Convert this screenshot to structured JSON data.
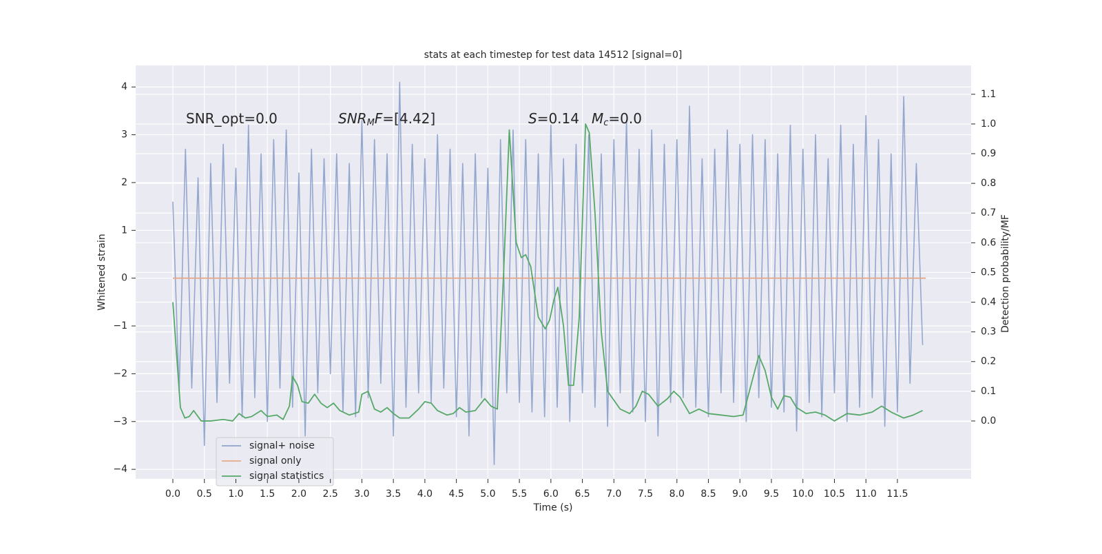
{
  "chart_data": {
    "type": "line",
    "title": "stats at each timestep for test data 14512 [signal=0]",
    "xlabel": "Time (s)",
    "ylabel": "Whitened strain",
    "y2label": "Detection probability/MF",
    "xlim": [
      -0.59,
      12.67
    ],
    "ylim": [
      -4.2,
      4.45
    ],
    "y2lim": [
      -0.195,
      1.197
    ],
    "xticks": [
      {
        "value": 0,
        "label": "0.0"
      },
      0.5,
      {
        "value": 1,
        "label": "1.0"
      },
      1.5,
      {
        "value": 2,
        "label": "2.0"
      },
      2.5,
      {
        "value": 3,
        "label": "3.0"
      },
      3.5,
      {
        "value": 4,
        "label": "4.0"
      },
      4.5,
      {
        "value": 5,
        "label": "5.0"
      },
      5.5,
      {
        "value": 6,
        "label": "6.0"
      },
      6.5,
      {
        "value": 7,
        "label": "7.0"
      },
      7.5,
      {
        "value": 8,
        "label": "8.0"
      },
      8.5,
      {
        "value": 9,
        "label": "9.0"
      },
      9.5,
      {
        "value": 10,
        "label": "10.0"
      },
      10.5,
      {
        "value": 11,
        "label": "11.0"
      },
      11.5
    ],
    "yticks": [
      {
        "value": -4,
        "label": "−4"
      },
      {
        "value": -3,
        "label": "−3"
      },
      {
        "value": -2,
        "label": "−2"
      },
      {
        "value": -1,
        "label": "−1"
      },
      0,
      1,
      2,
      3,
      4
    ],
    "y2ticks": [
      {
        "value": 0,
        "label": "0.0"
      },
      {
        "value": 0.1,
        "label": "0.1"
      },
      {
        "value": 0.2,
        "label": "0.2"
      },
      {
        "value": 0.3,
        "label": "0.3"
      },
      {
        "value": 0.4,
        "label": "0.4"
      },
      {
        "value": 0.5,
        "label": "0.5"
      },
      {
        "value": 0.6,
        "label": "0.6"
      },
      {
        "value": 0.7,
        "label": "0.7"
      },
      {
        "value": 0.8,
        "label": "0.8"
      },
      {
        "value": 0.9,
        "label": "0.9"
      },
      {
        "value": 1,
        "label": "1.0"
      },
      {
        "value": 1.1,
        "label": "1.1"
      }
    ],
    "grid": true,
    "legend": "lower left",
    "annotations": [
      [
        {
          "text": "SNR_opt=0.0"
        }
      ],
      [
        {
          "text": "SNR",
          "italic": true
        },
        {
          "text": "M",
          "italic": true,
          "sub": true
        },
        {
          "text": "F",
          "italic": true
        },
        {
          "text": "=[4.42]"
        }
      ],
      [
        {
          "text": "S",
          "italic": true
        },
        {
          "text": "=0.14"
        }
      ],
      [
        {
          "text": "M",
          "italic": true
        },
        {
          "text": "c",
          "italic": true,
          "sub": true
        },
        {
          "text": "=0.0"
        }
      ]
    ],
    "series": [
      {
        "name": "signal+ noise",
        "color": "#8fa3cc",
        "axis": "y",
        "x": [
          0,
          0.1,
          0.2,
          0.3,
          0.4,
          0.5,
          0.6,
          0.7,
          0.8,
          0.9,
          1,
          1.1,
          1.2,
          1.3,
          1.4,
          1.5,
          1.6,
          1.7,
          1.8,
          1.9,
          2,
          2.1,
          2.2,
          2.3,
          2.4,
          2.5,
          2.6,
          2.7,
          2.8,
          2.9,
          3,
          3.1,
          3.2,
          3.3,
          3.4,
          3.5,
          3.6,
          3.7,
          3.8,
          3.9,
          4,
          4.1,
          4.2,
          4.3,
          4.4,
          4.5,
          4.6,
          4.7,
          4.8,
          4.9,
          5,
          5.1,
          5.2,
          5.3,
          5.4,
          5.5,
          5.6,
          5.7,
          5.8,
          5.9,
          6,
          6.1,
          6.2,
          6.3,
          6.4,
          6.5,
          6.6,
          6.7,
          6.8,
          6.9,
          7,
          7.1,
          7.2,
          7.3,
          7.4,
          7.5,
          7.6,
          7.7,
          7.8,
          7.9,
          8,
          8.1,
          8.2,
          8.3,
          8.4,
          8.5,
          8.6,
          8.7,
          8.8,
          8.9,
          9,
          9.1,
          9.2,
          9.3,
          9.4,
          9.5,
          9.6,
          9.7,
          9.8,
          9.9,
          10,
          10.1,
          10.2,
          10.3,
          10.4,
          10.5,
          10.6,
          10.7,
          10.8,
          10.9,
          11,
          11.1,
          11.2,
          11.3,
          11.4,
          11.5,
          11.6,
          11.7,
          11.8,
          11.9
        ],
        "values": [
          1.6,
          -2.4,
          2.7,
          -2.3,
          2.1,
          -3.5,
          2.4,
          -2.6,
          2.8,
          -2.2,
          2.3,
          -2.9,
          3.2,
          -2.5,
          2.6,
          -3.0,
          2.9,
          -2.3,
          3.1,
          -2.7,
          2.2,
          -3.3,
          2.7,
          -2.4,
          2.5,
          -2.0,
          2.6,
          -2.8,
          2.4,
          -2.9,
          3.3,
          -2.5,
          2.9,
          -2.2,
          2.6,
          -3.3,
          4.1,
          -2.7,
          2.8,
          -2.4,
          2.5,
          -2.6,
          3.0,
          -2.3,
          2.7,
          -2.9,
          2.4,
          -3.3,
          2.6,
          -2.5,
          2.3,
          -3.9,
          2.9,
          -2.4,
          3.1,
          -2.6,
          2.9,
          -2.8,
          2.6,
          -2.9,
          3.2,
          -2.7,
          2.5,
          -3.0,
          2.8,
          -2.4,
          3.0,
          -2.7,
          2.6,
          -3.1,
          2.9,
          -2.4,
          3.3,
          -2.8,
          2.7,
          -3.0,
          3.1,
          -3.3,
          2.8,
          -2.6,
          2.9,
          -2.5,
          3.6,
          -2.7,
          2.5,
          -2.9,
          2.7,
          -2.4,
          3.1,
          -2.6,
          2.8,
          -3.0,
          3.0,
          -2.5,
          2.9,
          -2.7,
          2.6,
          -2.8,
          3.2,
          -3.2,
          2.7,
          -2.6,
          3.0,
          -2.9,
          2.5,
          -2.4,
          3.2,
          -3.0,
          2.8,
          -2.7,
          3.4,
          -2.5,
          2.9,
          -3.1,
          2.6,
          -2.8,
          3.8,
          -2.2,
          2.4,
          -1.4
        ]
      },
      {
        "name": "signal only",
        "color": "#e6a98a",
        "axis": "y",
        "x": [
          0,
          11.95
        ],
        "values": [
          0,
          0
        ]
      },
      {
        "name": "signal statistics",
        "color": "#55a868",
        "axis": "y2",
        "x": [
          0,
          0.12,
          0.19,
          0.26,
          0.33,
          0.45,
          0.6,
          0.8,
          0.95,
          1.05,
          1.15,
          1.25,
          1.4,
          1.5,
          1.65,
          1.75,
          1.85,
          1.9,
          1.98,
          2.05,
          2.15,
          2.25,
          2.35,
          2.45,
          2.55,
          2.65,
          2.8,
          2.95,
          3,
          3.1,
          3.2,
          3.3,
          3.4,
          3.5,
          3.6,
          3.75,
          3.9,
          4,
          4.1,
          4.2,
          4.35,
          4.45,
          4.55,
          4.65,
          4.8,
          4.95,
          5.05,
          5.15,
          5.25,
          5.34,
          5.45,
          5.53,
          5.6,
          5.68,
          5.8,
          5.91,
          5.98,
          6.05,
          6.11,
          6.2,
          6.28,
          6.36,
          6.45,
          6.55,
          6.61,
          6.7,
          6.8,
          6.9,
          7,
          7.1,
          7.25,
          7.35,
          7.45,
          7.55,
          7.7,
          7.85,
          7.95,
          8.05,
          8.2,
          8.35,
          8.5,
          8.7,
          8.9,
          9.05,
          9.15,
          9.3,
          9.4,
          9.5,
          9.6,
          9.7,
          9.8,
          9.9,
          10.05,
          10.2,
          10.35,
          10.5,
          10.7,
          10.9,
          11.1,
          11.25,
          11.4,
          11.6,
          11.75,
          11.9
        ],
        "values": [
          0.4,
          0.045,
          0.01,
          0.015,
          0.035,
          0,
          0,
          0.005,
          0,
          0.025,
          0.01,
          0.015,
          0.035,
          0.015,
          0.02,
          0.005,
          0.05,
          0.15,
          0.12,
          0.065,
          0.06,
          0.09,
          0.06,
          0.045,
          0.06,
          0.035,
          0.02,
          0.03,
          0.09,
          0.1,
          0.04,
          0.03,
          0.045,
          0.025,
          0.01,
          0.01,
          0.04,
          0.065,
          0.06,
          0.035,
          0.02,
          0.025,
          0.045,
          0.03,
          0.035,
          0.075,
          0.05,
          0.04,
          0.5,
          0.98,
          0.6,
          0.55,
          0.56,
          0.52,
          0.35,
          0.31,
          0.34,
          0.41,
          0.45,
          0.32,
          0.12,
          0.12,
          0.35,
          1,
          0.97,
          0.7,
          0.3,
          0.1,
          0.07,
          0.04,
          0.025,
          0.05,
          0.1,
          0.09,
          0.05,
          0.075,
          0.1,
          0.08,
          0.025,
          0.04,
          0.025,
          0.02,
          0.015,
          0.02,
          0.1,
          0.22,
          0.17,
          0.08,
          0.04,
          0.085,
          0.08,
          0.045,
          0.025,
          0.03,
          0.02,
          0,
          0.025,
          0.02,
          0.03,
          0.05,
          0.03,
          0.01,
          0.02,
          0.035
        ]
      }
    ]
  }
}
